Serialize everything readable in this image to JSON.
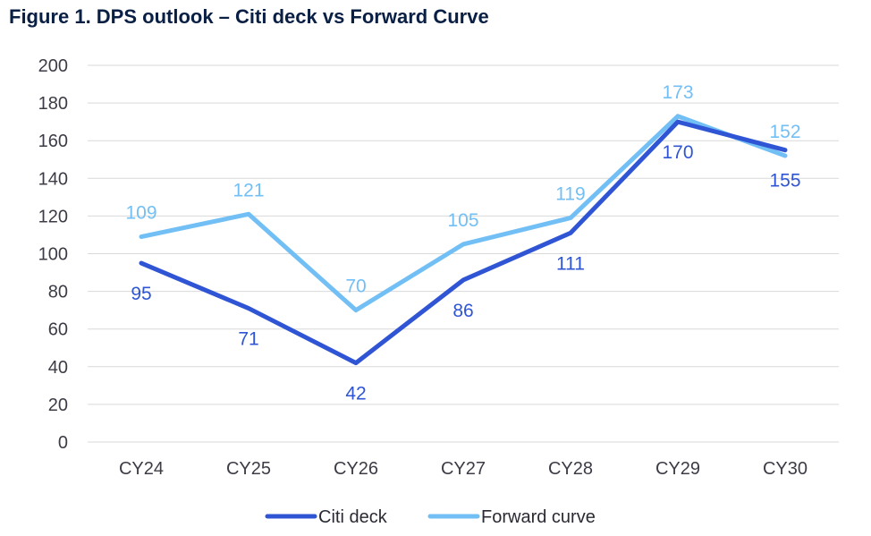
{
  "chart_data": {
    "type": "line",
    "title": "Figure 1. DPS outlook – Citi deck vs Forward Curve",
    "categories": [
      "CY24",
      "CY25",
      "CY26",
      "CY27",
      "CY28",
      "CY29",
      "CY30"
    ],
    "ylim": [
      0,
      200
    ],
    "yticks": [
      0,
      20,
      40,
      60,
      80,
      100,
      120,
      140,
      160,
      180,
      200
    ],
    "grid": true,
    "legend_position": "bottom",
    "series": [
      {
        "name": "Citi deck",
        "color": "#2f55d4",
        "label_placement": "below",
        "values": [
          95,
          71,
          42,
          86,
          111,
          170,
          155
        ]
      },
      {
        "name": "Forward curve",
        "color": "#72bff5",
        "label_placement": "above",
        "values": [
          109,
          121,
          70,
          105,
          119,
          173,
          152
        ]
      }
    ]
  }
}
